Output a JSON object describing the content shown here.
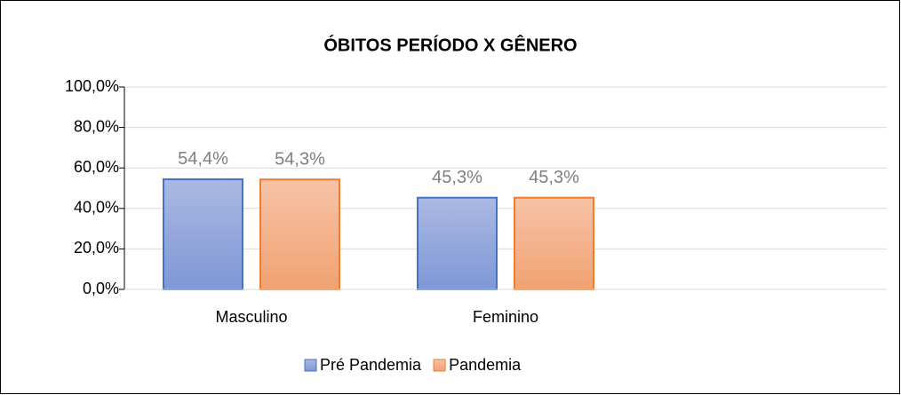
{
  "chart_data": {
    "type": "bar",
    "title": "ÓBITOS  PERÍODO X GÊNERO",
    "categories": [
      "Masculino",
      "Feminino",
      null
    ],
    "series": [
      {
        "name": "Pré Pandemia",
        "color": "#4472c4",
        "values": [
          54.4,
          45.3,
          null
        ],
        "value_labels": [
          "54,4%",
          "45,3%",
          null
        ]
      },
      {
        "name": "Pandemia",
        "color": "#ed7d31",
        "values": [
          54.3,
          45.3,
          null
        ],
        "value_labels": [
          "54,3%",
          "45,3%",
          null
        ]
      }
    ],
    "ylim": [
      0,
      100
    ],
    "yticks": [
      {
        "value": 0,
        "label": "0,0%"
      },
      {
        "value": 20,
        "label": "20,0%"
      },
      {
        "value": 40,
        "label": "40,0%"
      },
      {
        "value": 60,
        "label": "60,0%"
      },
      {
        "value": 80,
        "label": "80,0%"
      },
      {
        "value": 100,
        "label": "100,0%"
      }
    ],
    "grid": true,
    "legend": "bottom"
  }
}
